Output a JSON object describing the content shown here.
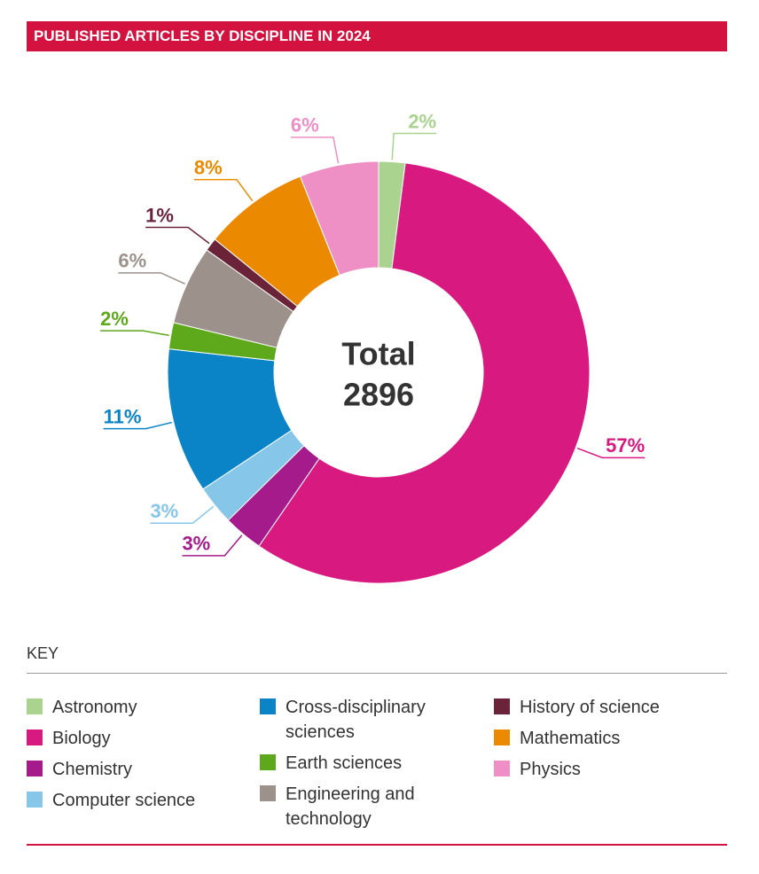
{
  "chart_data": {
    "type": "donut",
    "title": "PUBLISHED ARTICLES BY DISCIPLINE IN 2024",
    "center_label": "Total",
    "total": 2896,
    "key_title": "KEY",
    "categories": [
      "Astronomy",
      "Biology",
      "Chemistry",
      "Computer science",
      "Cross-disciplinary sciences",
      "Earth sciences",
      "Engineering and technology",
      "History of science",
      "Mathematics",
      "Physics"
    ],
    "values": [
      2,
      57,
      3,
      3,
      11,
      2,
      6,
      1,
      8,
      6
    ],
    "value_labels": [
      "2%",
      "57%",
      "3%",
      "3%",
      "11%",
      "2%",
      "6%",
      "1%",
      "8%",
      "6%"
    ],
    "colors": [
      "#a9d38e",
      "#d8197f",
      "#a51b8c",
      "#86c6e8",
      "#0a84c6",
      "#5ea81b",
      "#9c918b",
      "#6a2339",
      "#eb8a00",
      "#ee8fc5"
    ]
  }
}
